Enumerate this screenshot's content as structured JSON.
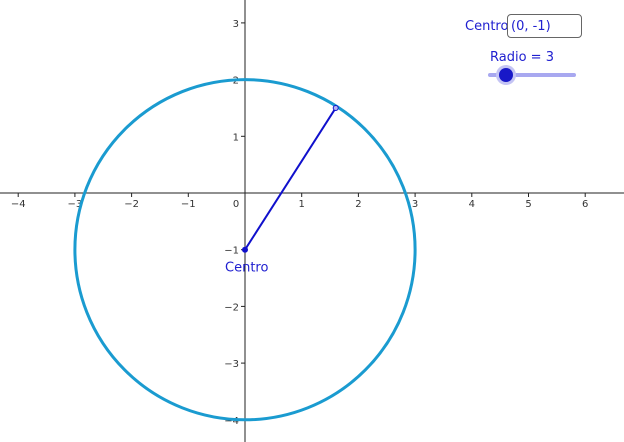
{
  "input": {
    "label": "Centro",
    "value": "(0, -1)"
  },
  "slider": {
    "label": "Radio = 3",
    "value": 3
  },
  "center_point_label": "Centro",
  "colors": {
    "circle": "#1a9bd0",
    "segment": "#1010cc",
    "axis": "#222222",
    "label": "#2020d0"
  },
  "graph": {
    "center": [
      0,
      -1
    ],
    "radius": 3,
    "radius_point": [
      1.6,
      1.5
    ],
    "x_ticks": [
      "−4",
      "−3",
      "−2",
      "−1",
      "0",
      "1",
      "2",
      "3",
      "4",
      "5",
      "6"
    ],
    "y_ticks": [
      "−4",
      "−3",
      "−2",
      "−1",
      "1",
      "2",
      "3"
    ]
  }
}
